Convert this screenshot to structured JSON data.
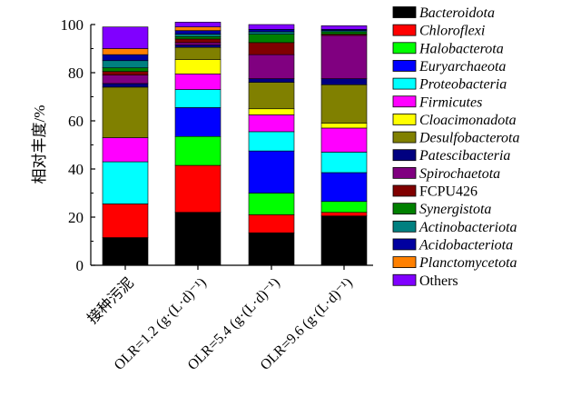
{
  "chart_data": {
    "type": "stacked-bar",
    "title": "",
    "xlabel": "",
    "ylabel": "相对丰度/%",
    "ylim": [
      0,
      100
    ],
    "yticks": [
      0,
      20,
      40,
      60,
      80,
      100
    ],
    "grid": false,
    "legend_position": "right",
    "categories": [
      "接种污泥",
      "OLR=1.2 (g·(L·d)⁻¹)",
      "OLR=5.4 (g·(L·d)⁻¹)",
      "OLR=9.6 (g·(L·d)⁻¹)"
    ],
    "series": [
      {
        "name": "Bacteroidota",
        "color": "#000000",
        "italic": true,
        "values": [
          11.5,
          22.0,
          13.5,
          20.5
        ]
      },
      {
        "name": "Chloroflexi",
        "color": "#ff0000",
        "italic": true,
        "values": [
          14.0,
          19.5,
          7.5,
          1.5
        ]
      },
      {
        "name": "Halobacterota",
        "color": "#00ff00",
        "italic": true,
        "values": [
          0.0,
          12.0,
          9.0,
          4.5
        ]
      },
      {
        "name": "Euryarchaeota",
        "color": "#0000ff",
        "italic": true,
        "values": [
          0.0,
          12.0,
          17.5,
          12.0
        ]
      },
      {
        "name": "Proteobacteria",
        "color": "#00ffff",
        "italic": true,
        "values": [
          17.5,
          7.5,
          8.0,
          8.5
        ]
      },
      {
        "name": "Firmicutes",
        "color": "#ff00ff",
        "italic": true,
        "values": [
          10.0,
          6.5,
          7.0,
          10.0
        ]
      },
      {
        "name": "Cloacimonadota",
        "color": "#ffff00",
        "italic": true,
        "values": [
          0.0,
          6.0,
          2.5,
          2.0
        ]
      },
      {
        "name": "Desulfobacterota",
        "color": "#808000",
        "italic": true,
        "values": [
          21.0,
          5.0,
          11.0,
          16.0
        ]
      },
      {
        "name": "Patescibacteria",
        "color": "#000080",
        "italic": true,
        "values": [
          1.5,
          1.0,
          1.5,
          2.5
        ]
      },
      {
        "name": "Spirochaetota",
        "color": "#800080",
        "italic": true,
        "values": [
          3.5,
          1.0,
          10.0,
          18.0
        ]
      },
      {
        "name": "FCPU426",
        "color": "#800000",
        "italic": false,
        "values": [
          1.5,
          1.5,
          5.0,
          0.5
        ]
      },
      {
        "name": "Synergistota",
        "color": "#008000",
        "italic": true,
        "values": [
          1.5,
          1.0,
          3.5,
          1.0
        ]
      },
      {
        "name": "Actinobacteriota",
        "color": "#008080",
        "italic": true,
        "values": [
          3.0,
          1.0,
          1.0,
          0.5
        ]
      },
      {
        "name": "Acidobacteriota",
        "color": "#0000a0",
        "italic": true,
        "values": [
          2.5,
          1.5,
          1.0,
          0.5
        ]
      },
      {
        "name": "Planctomycetota",
        "color": "#ff8000",
        "italic": true,
        "values": [
          2.5,
          1.5,
          0.0,
          0.0
        ]
      },
      {
        "name": "Others",
        "color": "#8000ff",
        "italic": false,
        "values": [
          9.0,
          2.0,
          2.0,
          1.5
        ]
      }
    ]
  }
}
